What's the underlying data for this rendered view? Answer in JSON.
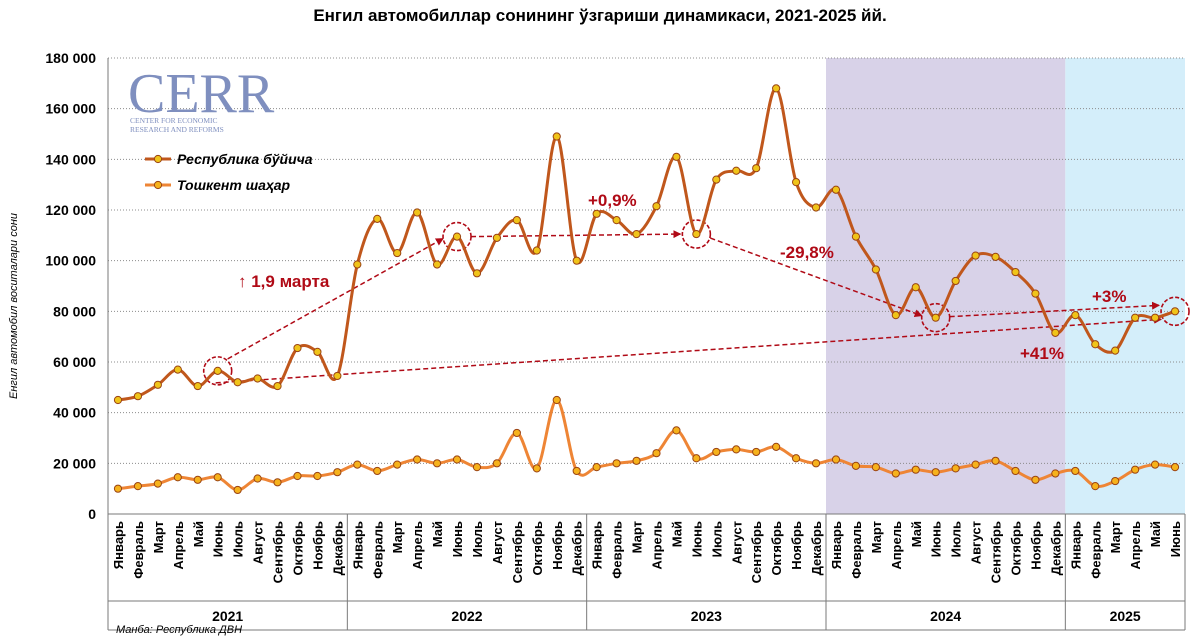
{
  "chart_data": {
    "type": "line",
    "title": "Енгил автомобиллар сонининг ўзгариши динамикаси, 2021-2025 йй.",
    "ylabel": "Енгил автомобил воситалари сони",
    "ylim": [
      0,
      180000
    ],
    "yticks": [
      "0",
      "20 000",
      "40 000",
      "60 000",
      "80 000",
      "100 000",
      "120 000",
      "140 000",
      "160 000",
      "180 000"
    ],
    "ytick_values": [
      0,
      20000,
      40000,
      60000,
      80000,
      100000,
      120000,
      140000,
      160000,
      180000
    ],
    "grid": true,
    "legend_position": "top-left",
    "months": [
      "Январь",
      "Февраль",
      "Март",
      "Апрель",
      "Май",
      "Июнь",
      "Июль",
      "Август",
      "Сентябрь",
      "Октябрь",
      "Ноябрь",
      "Декабрь",
      "Январь",
      "Февраль",
      "Март",
      "Апрель",
      "Май",
      "Июнь",
      "Июль",
      "Август",
      "Сентябрь",
      "Октябрь",
      "Ноябрь",
      "Декабрь",
      "Январь",
      "Февраль",
      "Март",
      "Апрель",
      "Май",
      "Июнь",
      "Июль",
      "Август",
      "Сентябрь",
      "Октябрь",
      "Ноябрь",
      "Декабрь",
      "Январь",
      "Февраль",
      "Март",
      "Апрель",
      "Май",
      "Июнь",
      "Июль",
      "Август",
      "Сентябрь",
      "Октябрь",
      "Ноябрь",
      "Декабрь",
      "Январь",
      "Февраль",
      "Март",
      "Апрель",
      "Май",
      "Июнь"
    ],
    "years": [
      {
        "label": "2021",
        "start": 0,
        "end": 11
      },
      {
        "label": "2022",
        "start": 12,
        "end": 23
      },
      {
        "label": "2023",
        "start": 24,
        "end": 35
      },
      {
        "label": "2024",
        "start": 36,
        "end": 47
      },
      {
        "label": "2025",
        "start": 48,
        "end": 53
      }
    ],
    "series": [
      {
        "name": "Республика бўйича",
        "color": "#c0571c",
        "values": [
          45000,
          46500,
          51000,
          57000,
          50500,
          56500,
          52000,
          53500,
          50500,
          65500,
          64000,
          54500,
          98500,
          116500,
          103000,
          119000,
          98500,
          109500,
          95000,
          109000,
          116000,
          104000,
          149000,
          100000,
          118500,
          116000,
          110500,
          121500,
          141000,
          110500,
          132000,
          135500,
          136500,
          168000,
          131000,
          121000,
          128000,
          109500,
          96500,
          78500,
          89500,
          77500,
          92000,
          102000,
          101500,
          95500,
          87000,
          71500,
          78500,
          67000,
          64500,
          77500,
          77500,
          80000
        ]
      },
      {
        "name": "Тошкент шаҳар",
        "color": "#ee8535",
        "values": [
          10000,
          11000,
          12000,
          14500,
          13500,
          14500,
          9500,
          14000,
          12500,
          15000,
          15000,
          16500,
          19500,
          17000,
          19500,
          21500,
          20000,
          21500,
          18500,
          20000,
          32000,
          18000,
          45000,
          17000,
          18500,
          20000,
          21000,
          24000,
          33000,
          22000,
          24500,
          25500,
          24500,
          26500,
          22000,
          20000,
          21500,
          19000,
          18500,
          16000,
          17500,
          16500,
          18000,
          19500,
          21000,
          17000,
          13500,
          16000,
          17000,
          11000,
          13000,
          17500,
          19500,
          18500
        ]
      }
    ],
    "shaded_regions": [
      {
        "start": 36,
        "end": 48,
        "color": "#d8d2e8"
      },
      {
        "start": 48,
        "end": 54,
        "color": "#d4eefa"
      }
    ],
    "annotations": [
      {
        "text": "↑ 1,9 марта"
      },
      {
        "text": "+0,9%"
      },
      {
        "text": "-29,8%"
      },
      {
        "text": "+3%"
      },
      {
        "text": "+41%"
      }
    ],
    "source": "Манба: Республика ДВН",
    "logo_text": "CERR",
    "logo_subtitle_1": "CENTER FOR ECONOMIC",
    "logo_subtitle_2": "RESEARCH AND REFORMS"
  }
}
